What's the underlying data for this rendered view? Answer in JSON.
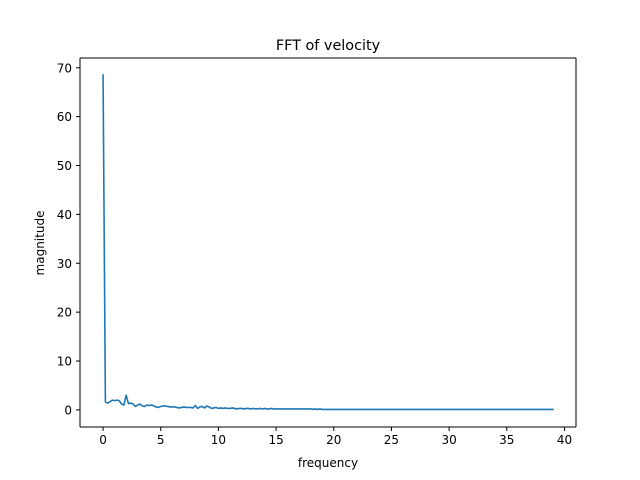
{
  "chart_data": {
    "type": "line",
    "title": "FFT of velocity",
    "xlabel": "frequency",
    "ylabel": "magnitude",
    "xlim": [
      -2,
      41
    ],
    "ylim": [
      -3.5,
      72
    ],
    "x_ticks": [
      0,
      5,
      10,
      15,
      20,
      25,
      30,
      35,
      40
    ],
    "y_ticks": [
      0,
      10,
      20,
      30,
      40,
      50,
      60,
      70
    ],
    "grid": false,
    "legend": "none",
    "colors": {
      "series": "#1f77b4"
    },
    "series": [
      {
        "x": [
          0.0,
          0.2,
          0.4,
          0.6,
          0.8,
          1.0,
          1.2,
          1.4,
          1.6,
          1.8,
          2.0,
          2.2,
          2.4,
          2.6,
          2.8,
          3.0,
          3.2,
          3.4,
          3.6,
          3.8,
          4.0,
          4.2,
          4.4,
          4.6,
          4.8,
          5.0,
          5.2,
          5.4,
          5.6,
          5.8,
          6.0,
          6.2,
          6.4,
          6.6,
          6.8,
          7.0,
          7.2,
          7.4,
          7.6,
          7.8,
          8.0,
          8.2,
          8.4,
          8.6,
          8.8,
          9.0,
          9.2,
          9.4,
          9.6,
          9.8,
          10.0,
          10.2,
          10.4,
          10.6,
          10.8,
          11.0,
          11.2,
          11.4,
          11.6,
          11.8,
          12.0,
          12.2,
          12.4,
          12.6,
          12.8,
          13.0,
          13.2,
          13.4,
          13.6,
          13.8,
          14.0,
          14.2,
          14.4,
          14.6,
          14.8,
          15.0,
          15.2,
          15.4,
          15.6,
          15.8,
          16.0,
          16.2,
          16.4,
          16.6,
          16.8,
          17.0,
          17.2,
          17.4,
          17.6,
          17.8,
          18.0,
          18.2,
          18.4,
          18.6,
          18.8,
          19.0,
          20.0,
          21.0,
          22.0,
          23.0,
          24.0,
          25.0,
          26.0,
          27.0,
          28.0,
          29.0,
          30.0,
          31.0,
          32.0,
          33.0,
          34.0,
          35.0,
          36.0,
          37.0,
          38.0,
          39.0
        ],
        "values": [
          68.5,
          1.6,
          1.4,
          1.7,
          2.0,
          1.9,
          2.0,
          1.9,
          1.2,
          1.0,
          3.0,
          1.3,
          1.4,
          1.2,
          0.7,
          1.0,
          1.2,
          0.8,
          0.7,
          1.0,
          0.9,
          1.0,
          0.8,
          0.6,
          0.5,
          0.7,
          0.8,
          0.8,
          0.7,
          0.6,
          0.6,
          0.6,
          0.5,
          0.4,
          0.5,
          0.6,
          0.5,
          0.5,
          0.5,
          0.4,
          0.9,
          0.3,
          0.6,
          0.7,
          0.4,
          0.8,
          0.6,
          0.3,
          0.4,
          0.5,
          0.3,
          0.4,
          0.3,
          0.4,
          0.3,
          0.3,
          0.4,
          0.3,
          0.2,
          0.3,
          0.3,
          0.2,
          0.3,
          0.3,
          0.2,
          0.3,
          0.2,
          0.2,
          0.3,
          0.2,
          0.3,
          0.2,
          0.2,
          0.3,
          0.2,
          0.2,
          0.2,
          0.2,
          0.2,
          0.2,
          0.2,
          0.2,
          0.2,
          0.2,
          0.2,
          0.2,
          0.2,
          0.2,
          0.2,
          0.2,
          0.2,
          0.1,
          0.2,
          0.1,
          0.2,
          0.1,
          0.1,
          0.1,
          0.1,
          0.1,
          0.1,
          0.1,
          0.1,
          0.1,
          0.1,
          0.1,
          0.1,
          0.1,
          0.1,
          0.1,
          0.1,
          0.1,
          0.1,
          0.1,
          0.1,
          0.1
        ]
      }
    ]
  }
}
